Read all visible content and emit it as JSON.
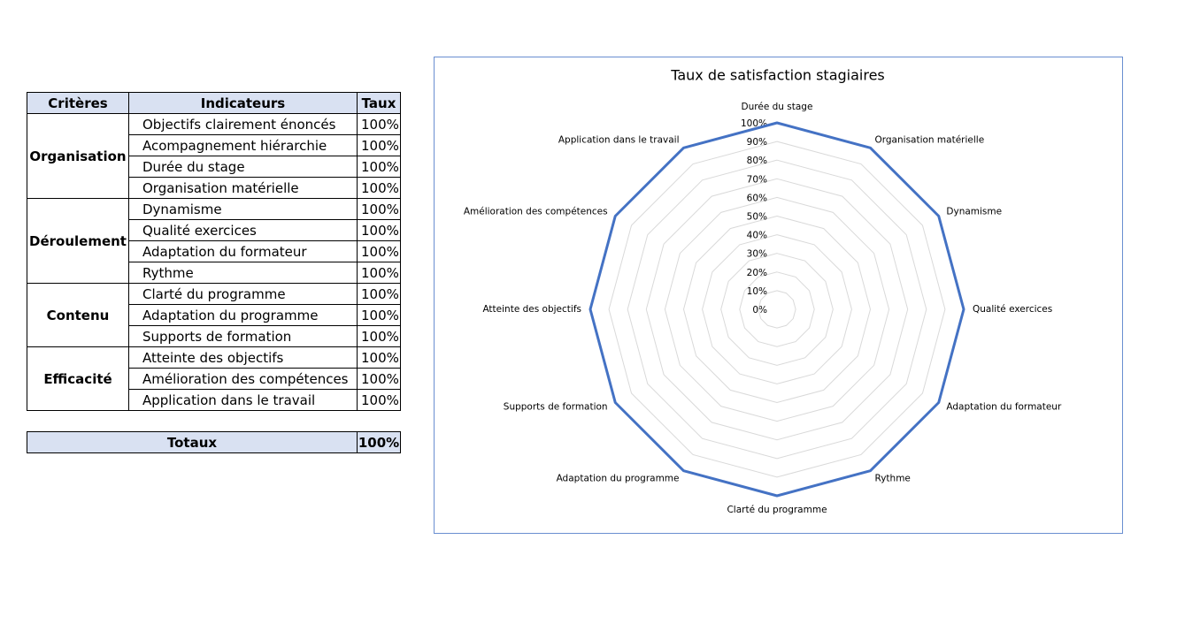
{
  "table": {
    "header": [
      "Critères",
      "Indicateurs",
      "Taux"
    ],
    "groups": [
      {
        "label": "Organisation",
        "rows": [
          [
            "Objectifs clairement énoncés",
            "100%"
          ],
          [
            "Acompagnement hiérarchie",
            "100%"
          ],
          [
            "Durée du stage",
            "100%"
          ],
          [
            "Organisation matérielle",
            "100%"
          ]
        ]
      },
      {
        "label": "Déroulement",
        "rows": [
          [
            "Dynamisme",
            "100%"
          ],
          [
            "Qualité exercices",
            "100%"
          ],
          [
            "Adaptation du formateur",
            "100%"
          ],
          [
            "Rythme",
            "100%"
          ]
        ]
      },
      {
        "label": "Contenu",
        "rows": [
          [
            "Clarté du programme",
            "100%"
          ],
          [
            "Adaptation du programme",
            "100%"
          ],
          [
            "Supports de formation",
            "100%"
          ]
        ]
      },
      {
        "label": "Efficacité",
        "rows": [
          [
            "Atteinte des objectifs",
            "100%"
          ],
          [
            "Amélioration des compétences",
            "100%"
          ],
          [
            "Application dans le travail",
            "100%"
          ]
        ]
      }
    ],
    "totals": [
      "Totaux",
      "100%"
    ]
  },
  "chart_data": {
    "type": "radar",
    "title": "Taux de satisfaction stagiaires",
    "categories": [
      "Durée du stage",
      "Organisation matérielle",
      "Dynamisme",
      "Qualité exercices",
      "Adaptation du formateur",
      "Rythme",
      "Clarté du programme",
      "Adaptation du programme",
      "Supports de formation",
      "Atteinte des objectifs",
      "Amélioration des compétences",
      "Application dans le travail"
    ],
    "values": [
      100,
      100,
      100,
      100,
      100,
      100,
      100,
      100,
      100,
      100,
      100,
      100
    ],
    "color": "#4472c4",
    "ylim": [
      0,
      100
    ],
    "yticks": [
      {
        "value": 0,
        "label": "0%"
      },
      {
        "value": 10,
        "label": "10%"
      },
      {
        "value": 20,
        "label": "20%"
      },
      {
        "value": 30,
        "label": "30%"
      },
      {
        "value": 40,
        "label": "40%"
      },
      {
        "value": 50,
        "label": "50%"
      },
      {
        "value": 60,
        "label": "60%"
      },
      {
        "value": 70,
        "label": "70%"
      },
      {
        "value": 80,
        "label": "80%"
      },
      {
        "value": 90,
        "label": "90%"
      },
      {
        "value": 100,
        "label": "100%"
      }
    ],
    "grid": true
  }
}
